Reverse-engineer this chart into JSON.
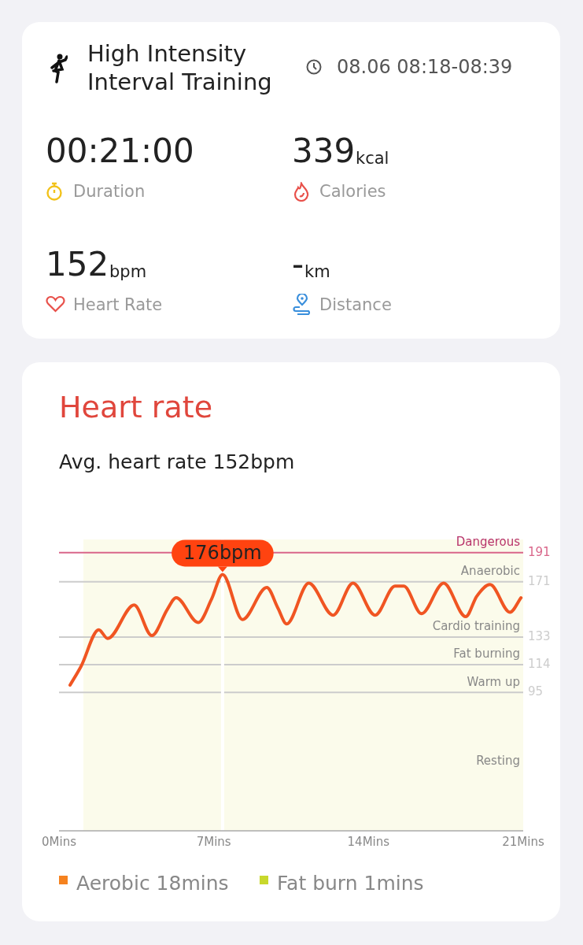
{
  "chart_data": [
    {
      "type": "other",
      "title": "High Intensity Interval Training",
      "annotations": [
        "08.06 08:18-08:39",
        "00:21:00",
        "Duration",
        "339",
        "kcal",
        "Calories",
        "152",
        "bpm",
        "Heart Rate",
        "-",
        "km",
        "Distance"
      ]
    },
    {
      "type": "line",
      "title": "Heart rate",
      "subtitle": "Avg. heart rate 152bpm",
      "x": [
        0.5,
        1.0,
        1.8,
        2.2,
        3.4,
        4.2,
        4.9,
        5.3,
        6.3,
        6.9,
        7.4,
        8.3,
        9.4,
        9.9,
        10.3,
        11.3,
        12.4,
        13.3,
        14.3,
        15.2,
        15.6,
        16.4,
        17.4,
        18.4,
        18.9,
        19.5,
        20.4,
        20.9
      ],
      "series": [
        {
          "color": "#f05522",
          "values": [
            100,
            113,
            138,
            132,
            155,
            134,
            152,
            160,
            143,
            159,
            176,
            145,
            167,
            153,
            142,
            170,
            148,
            170,
            148,
            168,
            168,
            149,
            170,
            147,
            161,
            169,
            150,
            160
          ]
        }
      ],
      "xlim": [
        0,
        21
      ],
      "xticks": [
        {
          "value": 0,
          "label": "0Mins"
        },
        {
          "value": 7,
          "label": "7Mins"
        },
        {
          "value": 14,
          "label": "14Mins"
        },
        {
          "value": 21,
          "label": "21Mins"
        }
      ],
      "ylim": [
        0,
        200
      ],
      "yticks": [
        191,
        171,
        133,
        114,
        95
      ],
      "grid": false,
      "marker": "none",
      "ref_lines": [
        {
          "axis": "y",
          "value": 191,
          "label": "Dangerous",
          "color": "#d9668a"
        },
        {
          "axis": "y",
          "value": 171,
          "label": "Anaerobic",
          "color": "#cccccc"
        },
        {
          "axis": "y",
          "value": 133,
          "label": "Cardio training",
          "color": "#cccccc"
        },
        {
          "axis": "y",
          "value": 114,
          "label": "Fat burning",
          "color": "#cccccc"
        },
        {
          "axis": "y",
          "value": 95,
          "label": "Warm up",
          "color": "#cccccc"
        },
        {
          "axis": "x",
          "value": 7.4,
          "color": "#ffffff"
        }
      ],
      "bands": [
        {
          "axis": "x",
          "from": 1.1,
          "to": 21,
          "color": "#fbfbeb"
        }
      ],
      "annotations": [
        "Resting",
        {
          "text": "176bpm",
          "x": 7.4,
          "y": 176
        },
        "Aerobic 18mins",
        "Fat burn 1mins"
      ]
    }
  ]
}
